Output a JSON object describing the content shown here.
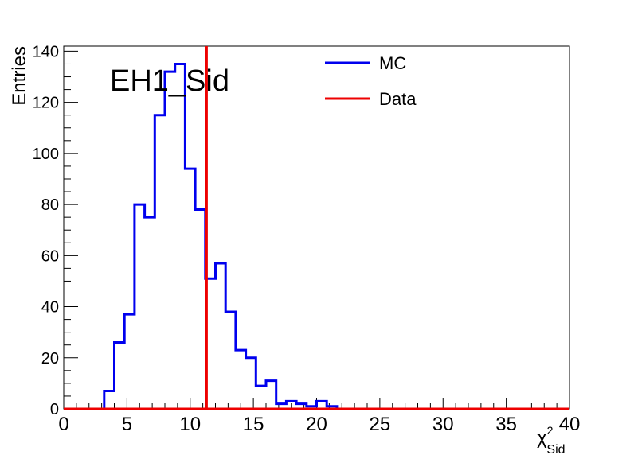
{
  "chart_data": {
    "type": "histogram",
    "label": "EH1_Sid",
    "xlabel": "χ",
    "xlabel_sup": "2",
    "xlabel_sub": "Sid",
    "ylabel": "Entries",
    "xlim": [
      0,
      40
    ],
    "ylim": [
      0,
      142
    ],
    "x_ticks": [
      0,
      5,
      10,
      15,
      20,
      25,
      30,
      35,
      40
    ],
    "x_tick_labels": [
      "0",
      "5",
      "10",
      "15",
      "20",
      "25",
      "30",
      "35",
      "40"
    ],
    "y_ticks": [
      0,
      20,
      40,
      60,
      80,
      100,
      120,
      140
    ],
    "y_tick_labels": [
      "0",
      "20",
      "40",
      "60",
      "80",
      "100",
      "120",
      "140"
    ],
    "grid": false,
    "legend_position": "top-right",
    "series": [
      {
        "name": "MC",
        "color": "#0000ee",
        "kind": "step-histogram",
        "bin_width": 0.8,
        "bin_starts": [
          0.0,
          0.8,
          1.6,
          2.4,
          3.2,
          4.0,
          4.8,
          5.6,
          6.4,
          7.2,
          8.0,
          8.8,
          9.6,
          10.4,
          11.2,
          12.0,
          12.8,
          13.6,
          14.4,
          15.2,
          16.0,
          16.8,
          17.6,
          18.4,
          19.2,
          20.0,
          20.8,
          21.6
        ],
        "counts": [
          0,
          0,
          0,
          0,
          7,
          26,
          37,
          80,
          75,
          115,
          132,
          135,
          94,
          78,
          51,
          57,
          38,
          23,
          20,
          9,
          11,
          2,
          3,
          2,
          1,
          3,
          1,
          0
        ]
      },
      {
        "name": "Data",
        "color": "#ee0000",
        "kind": "vertical-line",
        "x": 11.3
      }
    ]
  }
}
